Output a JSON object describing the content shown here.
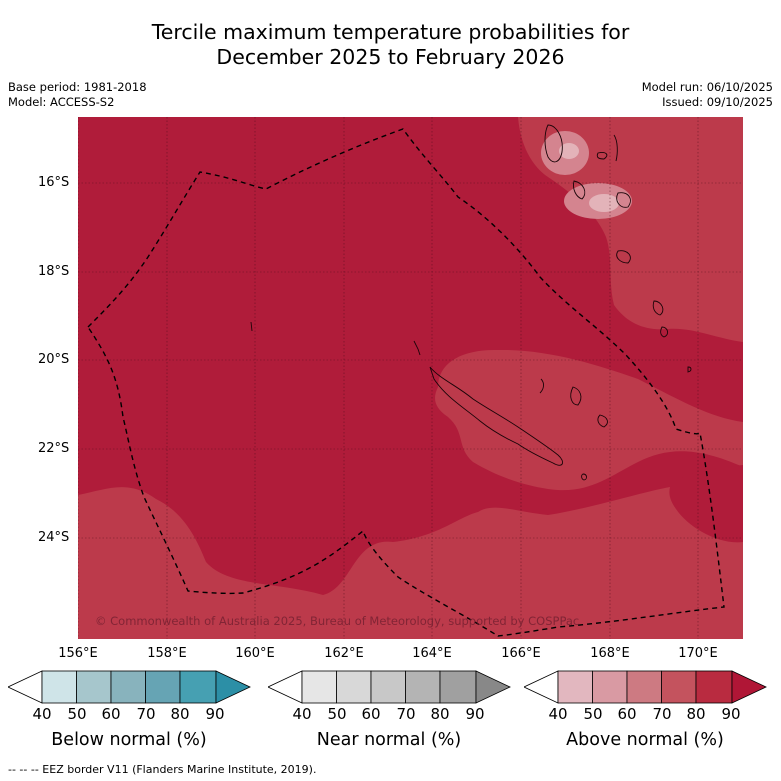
{
  "title_line1": "Tercile maximum temperature probabilities for",
  "title_line2": "December 2025 to February 2026",
  "base_period": "Base period: 1981-2018",
  "model": "Model: ACCESS-S2",
  "model_run": "Model run: 06/10/2025",
  "issued": "Issued: 09/10/2025",
  "copyright": "© Commonwealth of Australia 2025, Bureau of Meteorology, supported by COSPPac",
  "lat_labels": [
    "16°S",
    "18°S",
    "20°S",
    "22°S",
    "24°S"
  ],
  "lon_labels": [
    "156°E",
    "158°E",
    "160°E",
    "162°E",
    "164°E",
    "166°E",
    "168°E",
    "170°E"
  ],
  "colorbars": [
    {
      "label": "Below normal (%)",
      "ticks": [
        "40",
        "50",
        "60",
        "70",
        "80",
        "90"
      ],
      "colors": [
        "#ffffff",
        "#cfe4e8",
        "#a6c6cc",
        "#88b3bd",
        "#66a4b4",
        "#46a0b2",
        "#2c8fa6"
      ]
    },
    {
      "label": "Near normal (%)",
      "ticks": [
        "40",
        "50",
        "60",
        "70",
        "80",
        "90"
      ],
      "colors": [
        "#ffffff",
        "#e6e6e6",
        "#d8d8d8",
        "#c8c8c8",
        "#b4b4b4",
        "#a0a0a0",
        "#888888"
      ]
    },
    {
      "label": "Above normal (%)",
      "ticks": [
        "40",
        "50",
        "60",
        "70",
        "80",
        "90"
      ],
      "colors": [
        "#ffffff",
        "#e2b7bf",
        "#d99aa3",
        "#cd7a82",
        "#c4535e",
        "#b92b40",
        "#b01636"
      ]
    }
  ],
  "footer": "--  --  -- EEZ border V11 (Flanders Marine Institute, 2019).",
  "map_colors": {
    "high": "#b01c3a",
    "medium": "#bc3a4b",
    "low": "#d4848f",
    "lowest": "#e3b3b9"
  }
}
